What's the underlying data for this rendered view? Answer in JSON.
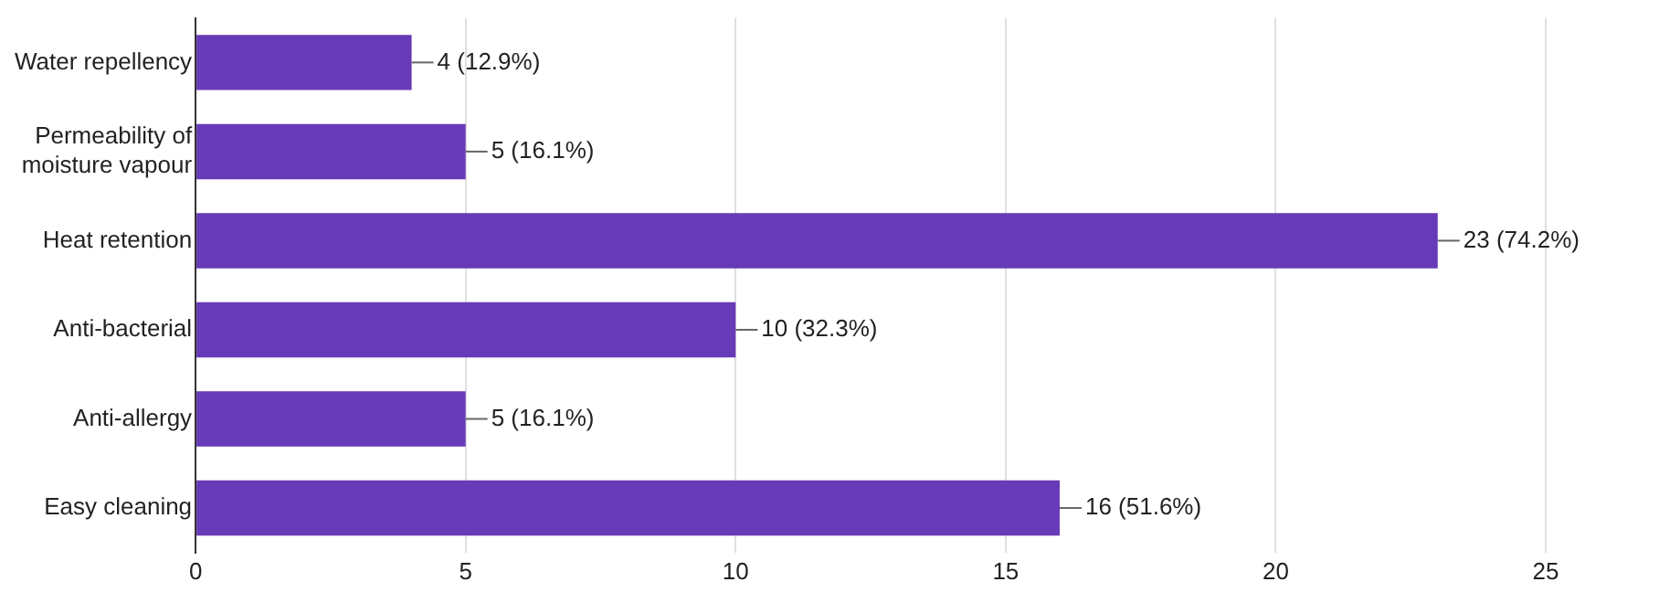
{
  "chart_data": {
    "type": "bar",
    "orientation": "horizontal",
    "categories": [
      "Water repellency",
      "Permeability of moisture vapour",
      "Heat retention",
      "Anti-bacterial",
      "Anti-allergy",
      "Easy cleaning"
    ],
    "values": [
      4,
      5,
      23,
      10,
      5,
      16
    ],
    "value_labels": [
      "4 (12.9%)",
      "5 (16.1%)",
      "23 (74.2%)",
      "10 (32.3%)",
      "5 (16.1%)",
      "16 (51.6%)"
    ],
    "color": "#673ab7",
    "xlim": [
      0,
      25
    ],
    "xticks": [
      0,
      5,
      10,
      15,
      20,
      25
    ],
    "grid": "x",
    "legend": false
  }
}
